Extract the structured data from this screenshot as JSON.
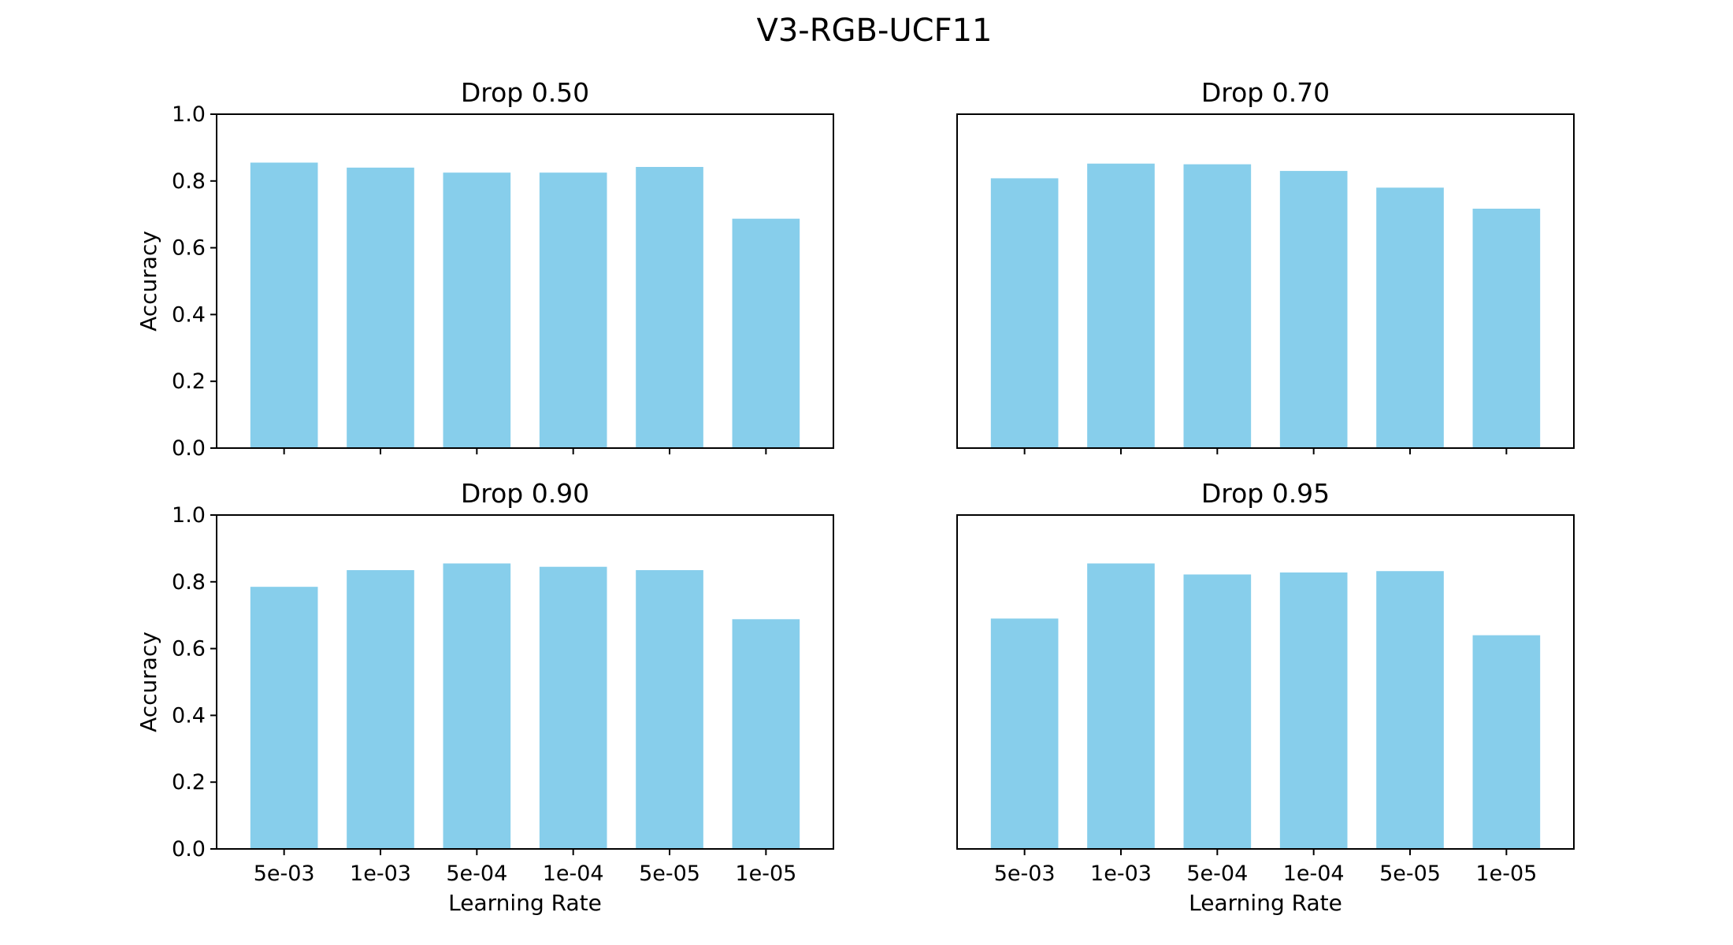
{
  "figure": {
    "title": "V3-RGB-UCF11"
  },
  "chart_data": [
    {
      "type": "bar",
      "title": "Drop 0.50",
      "categories": [
        "5e-03",
        "1e-03",
        "5e-04",
        "1e-04",
        "5e-05",
        "1e-05"
      ],
      "values": [
        0.855,
        0.84,
        0.825,
        0.825,
        0.842,
        0.687
      ],
      "xlabel": "",
      "ylabel": "Accuracy",
      "ylim": [
        0,
        1.0
      ],
      "yticks": [
        "0.0",
        "0.2",
        "0.4",
        "0.6",
        "0.8",
        "1.0"
      ],
      "color": "#87ceeb"
    },
    {
      "type": "bar",
      "title": "Drop 0.70",
      "categories": [
        "5e-03",
        "1e-03",
        "5e-04",
        "1e-04",
        "5e-05",
        "1e-05"
      ],
      "values": [
        0.808,
        0.852,
        0.85,
        0.83,
        0.78,
        0.717
      ],
      "xlabel": "",
      "ylabel": "",
      "ylim": [
        0,
        1.0
      ],
      "yticks": [],
      "color": "#87ceeb"
    },
    {
      "type": "bar",
      "title": "Drop 0.90",
      "categories": [
        "5e-03",
        "1e-03",
        "5e-04",
        "1e-04",
        "5e-05",
        "1e-05"
      ],
      "values": [
        0.785,
        0.835,
        0.855,
        0.845,
        0.835,
        0.688
      ],
      "xlabel": "Learning Rate",
      "ylabel": "Accuracy",
      "ylim": [
        0,
        1.0
      ],
      "yticks": [
        "0.0",
        "0.2",
        "0.4",
        "0.6",
        "0.8",
        "1.0"
      ],
      "color": "#87ceeb"
    },
    {
      "type": "bar",
      "title": "Drop 0.95",
      "categories": [
        "5e-03",
        "1e-03",
        "5e-04",
        "1e-04",
        "5e-05",
        "1e-05"
      ],
      "values": [
        0.69,
        0.855,
        0.822,
        0.828,
        0.832,
        0.64
      ],
      "xlabel": "Learning Rate",
      "ylabel": "",
      "ylim": [
        0,
        1.0
      ],
      "yticks": [],
      "color": "#87ceeb"
    }
  ]
}
